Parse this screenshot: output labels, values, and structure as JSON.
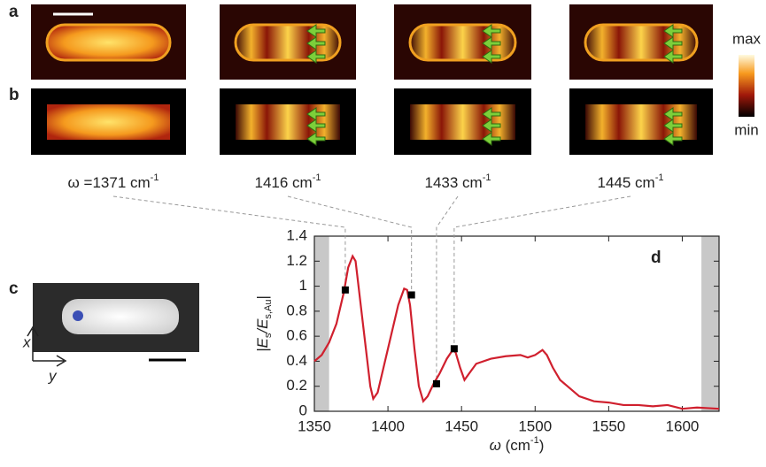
{
  "panel_labels": [
    "a",
    "b",
    "c"
  ],
  "colorbar": {
    "max": "max",
    "min": "min"
  },
  "frequency_labels": [
    {
      "text": "ω =1371 cm",
      "sup": "-1"
    },
    {
      "text": "1416 cm",
      "sup": "-1"
    },
    {
      "text": "1433 cm",
      "sup": "-1"
    },
    {
      "text": "1445 cm",
      "sup": "-1"
    }
  ],
  "axes_c": {
    "x": "x",
    "y": "y"
  },
  "chart_data": {
    "type": "line",
    "panel_label": "d",
    "xlabel": [
      "ω",
      " (cm",
      "-1",
      ")"
    ],
    "ylabel": [
      "|E",
      "s",
      "/E",
      "s,Au",
      "|"
    ],
    "xlim": [
      1350,
      1625
    ],
    "ylim": [
      0,
      1.4
    ],
    "xticks": [
      1350,
      1400,
      1450,
      1500,
      1550,
      1600
    ],
    "yticks": [
      0,
      0.2,
      0.4,
      0.6,
      0.8,
      1,
      1.2,
      1.4
    ],
    "shaded_regions": [
      [
        1350,
        1360
      ],
      [
        1613,
        1625
      ]
    ],
    "series": [
      {
        "type": "line",
        "color": "#d0202e",
        "x": [
          1350,
          1355,
          1360,
          1365,
          1370,
          1373,
          1376,
          1378,
          1381,
          1385,
          1388,
          1390,
          1393,
          1397,
          1402,
          1407,
          1411,
          1413,
          1415,
          1418,
          1421,
          1424,
          1427,
          1431,
          1435,
          1440,
          1444,
          1446,
          1449,
          1452,
          1455,
          1460,
          1470,
          1480,
          1490,
          1495,
          1500,
          1505,
          1508,
          1512,
          1517,
          1522,
          1530,
          1540,
          1550,
          1560,
          1570,
          1580,
          1590,
          1600,
          1610,
          1625
        ],
        "values": [
          0.4,
          0.45,
          0.55,
          0.7,
          0.95,
          1.15,
          1.24,
          1.2,
          0.9,
          0.5,
          0.2,
          0.1,
          0.15,
          0.35,
          0.6,
          0.85,
          0.98,
          0.97,
          0.85,
          0.5,
          0.2,
          0.08,
          0.12,
          0.22,
          0.3,
          0.42,
          0.49,
          0.47,
          0.35,
          0.25,
          0.3,
          0.38,
          0.42,
          0.44,
          0.45,
          0.43,
          0.45,
          0.49,
          0.45,
          0.35,
          0.25,
          0.2,
          0.12,
          0.08,
          0.07,
          0.05,
          0.05,
          0.04,
          0.05,
          0.02,
          0.03,
          0.02
        ]
      },
      {
        "type": "scatter",
        "color": "#000000",
        "x": [
          1371,
          1416,
          1433,
          1445
        ],
        "values": [
          0.97,
          0.93,
          0.22,
          0.5
        ]
      }
    ]
  }
}
